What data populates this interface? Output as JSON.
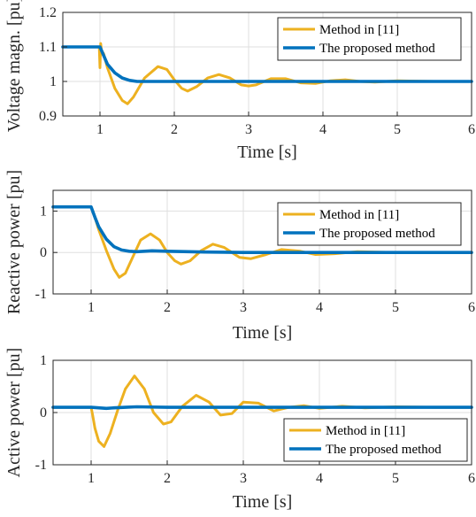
{
  "chart_data": [
    {
      "type": "line",
      "title": "",
      "xlabel": "Time [s]",
      "ylabel": "Voltage magn. [pu]",
      "xlim": [
        0.5,
        6
      ],
      "ylim": [
        0.9,
        1.2
      ],
      "xticks": [
        "1",
        "2",
        "3",
        "4",
        "5",
        "6"
      ],
      "yticks": [
        "0.9",
        "1",
        "1.1",
        "1.2"
      ],
      "grid": true,
      "legend_position": "top-right",
      "series": [
        {
          "name": "Method in [11]",
          "color": "#EDB120",
          "x": [
            0.5,
            0.99,
            1.0,
            1.01,
            1.02,
            1.05,
            1.1,
            1.2,
            1.3,
            1.37,
            1.45,
            1.6,
            1.78,
            1.9,
            2.0,
            2.1,
            2.18,
            2.3,
            2.45,
            2.6,
            2.75,
            2.9,
            3.0,
            3.1,
            3.3,
            3.5,
            3.7,
            3.9,
            4.1,
            4.3,
            4.5,
            4.7,
            5.0,
            5.5,
            6.0
          ],
          "y": [
            1.1,
            1.1,
            1.04,
            1.11,
            1.09,
            1.08,
            1.04,
            0.98,
            0.945,
            0.935,
            0.955,
            1.01,
            1.043,
            1.035,
            1.005,
            0.98,
            0.972,
            0.985,
            1.01,
            1.02,
            1.01,
            0.99,
            0.987,
            0.99,
            1.008,
            1.008,
            0.996,
            0.994,
            1.002,
            1.005,
            1.0,
            0.998,
            1.002,
            1.0,
            1.0
          ]
        },
        {
          "name": "The proposed method",
          "color": "#0072BD",
          "x": [
            0.5,
            1.0,
            1.05,
            1.1,
            1.2,
            1.3,
            1.4,
            1.5,
            1.7,
            2.0,
            2.5,
            6.0
          ],
          "y": [
            1.1,
            1.1,
            1.075,
            1.05,
            1.025,
            1.01,
            1.003,
            1.0,
            1.0,
            1.0,
            1.0,
            1.0
          ]
        }
      ]
    },
    {
      "type": "line",
      "title": "",
      "xlabel": "Time [s]",
      "ylabel": "Reactive power [pu]",
      "xlim": [
        0.5,
        6
      ],
      "ylim": [
        -1,
        1.5
      ],
      "xticks": [
        "1",
        "2",
        "3",
        "4",
        "5",
        "6"
      ],
      "yticks": [
        "-1",
        "0",
        "1"
      ],
      "grid": true,
      "legend_position": "top-right",
      "series": [
        {
          "name": "Method in [11]",
          "color": "#EDB120",
          "x": [
            0.5,
            1.0,
            1.05,
            1.1,
            1.2,
            1.3,
            1.37,
            1.45,
            1.55,
            1.65,
            1.78,
            1.9,
            2.0,
            2.1,
            2.18,
            2.3,
            2.45,
            2.6,
            2.75,
            2.95,
            3.1,
            3.3,
            3.5,
            3.75,
            3.95,
            4.2,
            4.5,
            5.0,
            5.5,
            6.0
          ],
          "y": [
            1.1,
            1.1,
            0.85,
            0.55,
            0.05,
            -0.4,
            -0.6,
            -0.5,
            -0.1,
            0.3,
            0.45,
            0.3,
            0.0,
            -0.2,
            -0.28,
            -0.2,
            0.05,
            0.2,
            0.12,
            -0.12,
            -0.15,
            -0.05,
            0.07,
            0.03,
            -0.05,
            -0.03,
            0.02,
            0.0,
            0.0,
            0.0
          ]
        },
        {
          "name": "The proposed method",
          "color": "#0072BD",
          "x": [
            0.5,
            1.0,
            1.05,
            1.1,
            1.2,
            1.3,
            1.4,
            1.5,
            1.6,
            1.8,
            2.0,
            2.5,
            3.0,
            6.0
          ],
          "y": [
            1.1,
            1.1,
            0.85,
            0.62,
            0.32,
            0.14,
            0.06,
            0.03,
            0.02,
            0.04,
            0.03,
            0.01,
            0.0,
            0.0
          ]
        }
      ]
    },
    {
      "type": "line",
      "title": "",
      "xlabel": "Time [s]",
      "ylabel": "Active power [pu]",
      "xlim": [
        0.5,
        6
      ],
      "ylim": [
        -1,
        1
      ],
      "xticks": [
        "1",
        "2",
        "3",
        "4",
        "5",
        "6"
      ],
      "yticks": [
        "-1",
        "0",
        "1"
      ],
      "grid": true,
      "legend_position": "bottom-right",
      "series": [
        {
          "name": "Method in [11]",
          "color": "#EDB120",
          "x": [
            0.5,
            1.0,
            1.02,
            1.05,
            1.1,
            1.17,
            1.25,
            1.35,
            1.45,
            1.57,
            1.7,
            1.82,
            1.95,
            2.05,
            2.2,
            2.38,
            2.55,
            2.7,
            2.85,
            3.0,
            3.2,
            3.4,
            3.6,
            3.8,
            4.0,
            4.3,
            4.6,
            5.0,
            5.5,
            6.0
          ],
          "y": [
            0.1,
            0.1,
            -0.05,
            -0.3,
            -0.55,
            -0.65,
            -0.4,
            0.05,
            0.45,
            0.7,
            0.45,
            0.0,
            -0.22,
            -0.18,
            0.12,
            0.33,
            0.2,
            -0.05,
            -0.02,
            0.2,
            0.18,
            0.03,
            0.1,
            0.13,
            0.08,
            0.12,
            0.09,
            0.11,
            0.1,
            0.1
          ]
        },
        {
          "name": "The proposed method",
          "color": "#0072BD",
          "x": [
            0.5,
            1.0,
            1.1,
            1.2,
            1.3,
            1.45,
            1.6,
            2.0,
            6.0
          ],
          "y": [
            0.1,
            0.1,
            0.09,
            0.08,
            0.09,
            0.1,
            0.11,
            0.1,
            0.1
          ]
        }
      ]
    }
  ]
}
